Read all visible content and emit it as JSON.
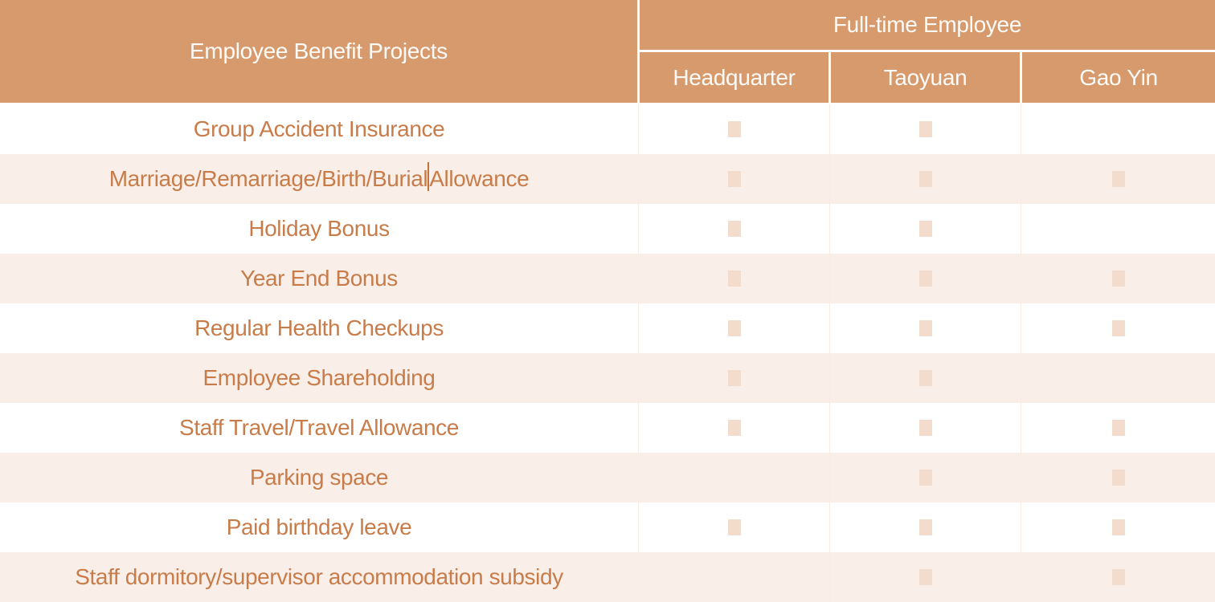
{
  "colors": {
    "header_bg": "#d79a6d",
    "header_text": "#fdfbf8",
    "body_text": "#c87c4a",
    "row_white_bg": "#ffffff",
    "row_pink_bg": "#f9efe8",
    "mark_square": "#f3dccb",
    "grid_line": "#f8ece3",
    "text_cursor": "#c4713b"
  },
  "table": {
    "corner_header": "Employee Benefit Projects",
    "group_header": "Full-time Employee",
    "columns": [
      "Headquarter",
      "Taoyuan",
      "Gao Yin"
    ],
    "mark_meaning": "benefit-available-square",
    "rows": [
      {
        "label": "Group Accident Insurance",
        "marks": [
          true,
          true,
          false
        ]
      },
      {
        "label": "Marriage/Remarriage/Birth/Burial",
        "label_after_caret": "Allowance",
        "marks": [
          true,
          true,
          true
        ]
      },
      {
        "label": "Holiday Bonus",
        "marks": [
          true,
          true,
          false
        ]
      },
      {
        "label": "Year End Bonus",
        "marks": [
          true,
          true,
          true
        ]
      },
      {
        "label": "Regular Health Checkups",
        "marks": [
          true,
          true,
          true
        ]
      },
      {
        "label": "Employee Shareholding",
        "marks": [
          true,
          true,
          false
        ]
      },
      {
        "label": "Staff Travel/Travel Allowance",
        "marks": [
          true,
          true,
          true
        ]
      },
      {
        "label": "Parking space",
        "marks": [
          false,
          true,
          true
        ]
      },
      {
        "label": "Paid birthday leave",
        "marks": [
          true,
          true,
          true
        ]
      },
      {
        "label": "Staff dormitory/supervisor accommodation subsidy",
        "marks": [
          false,
          true,
          true
        ]
      }
    ]
  }
}
